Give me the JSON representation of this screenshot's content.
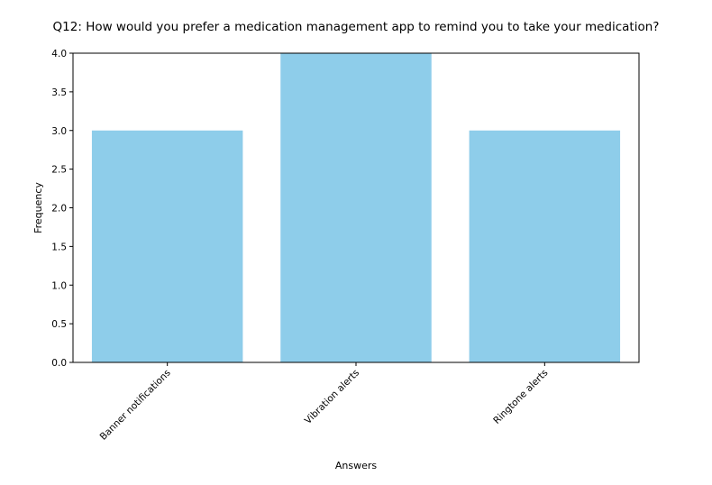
{
  "chart_data": {
    "type": "bar",
    "title": "Q12: How would you prefer a medication management app to remind you to take your medication?",
    "xlabel": "Answers",
    "ylabel": "Frequency",
    "categories": [
      "Banner notifications",
      "Vibration alerts",
      "Ringtone alerts"
    ],
    "values": [
      3,
      4,
      3
    ],
    "ylim": [
      0,
      4.0
    ],
    "yticks": [
      "0.0",
      "0.5",
      "1.0",
      "1.5",
      "2.0",
      "2.5",
      "3.0",
      "3.5",
      "4.0"
    ],
    "bar_color": "#8ecdea",
    "grid": false,
    "legend": "none"
  }
}
